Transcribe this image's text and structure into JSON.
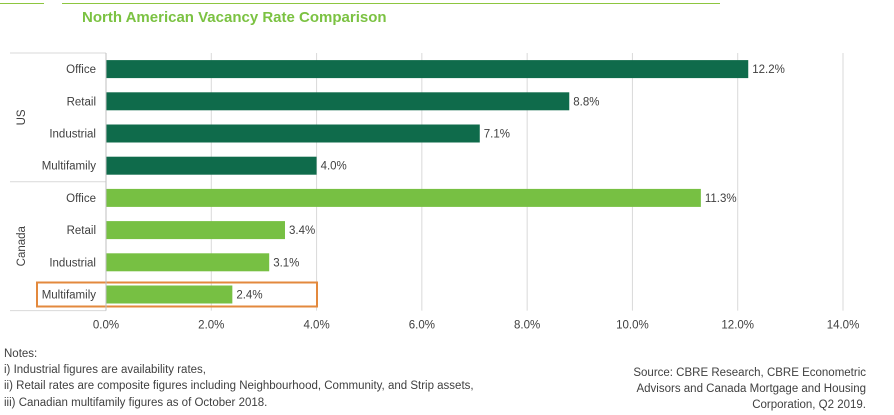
{
  "title": "North American Vacancy Rate Comparison",
  "colors": {
    "us": "#0f6b4b",
    "canada": "#77c043",
    "highlight": "#e3893d",
    "title": "#7bc242"
  },
  "chart_data": {
    "type": "bar",
    "orientation": "horizontal",
    "title": "North American Vacancy Rate Comparison",
    "xlim": [
      0,
      14
    ],
    "x_ticks": [
      "0.0%",
      "2.0%",
      "4.0%",
      "6.0%",
      "8.0%",
      "10.0%",
      "12.0%",
      "14.0%"
    ],
    "grid": "vertical",
    "groups": [
      {
        "name": "US",
        "color": "#0f6b4b",
        "categories": [
          "Office",
          "Retail",
          "Industrial",
          "Multifamily"
        ],
        "values": [
          12.2,
          8.8,
          7.1,
          4.0
        ],
        "labels": [
          "12.2%",
          "8.8%",
          "7.1%",
          "4.0%"
        ]
      },
      {
        "name": "Canada",
        "color": "#77c043",
        "categories": [
          "Office",
          "Retail",
          "Industrial",
          "Multifamily"
        ],
        "values": [
          11.3,
          3.4,
          3.1,
          2.4
        ],
        "labels": [
          "11.3%",
          "3.4%",
          "3.1%",
          "2.4%"
        ]
      }
    ],
    "highlighted": {
      "group": "Canada",
      "category": "Multifamily"
    }
  },
  "notes": {
    "heading": "Notes:",
    "lines": [
      "i) Industrial figures are availability rates,",
      "ii) Retail rates are composite figures including Neighbourhood, Community, and Strip assets,",
      "iii) Canadian multifamily figures as of October 2018."
    ]
  },
  "source": {
    "lines": [
      "Source: CBRE Research, CBRE Econometric",
      "Advisors and Canada Mortgage and Housing",
      "Corporation, Q2 2019."
    ]
  }
}
